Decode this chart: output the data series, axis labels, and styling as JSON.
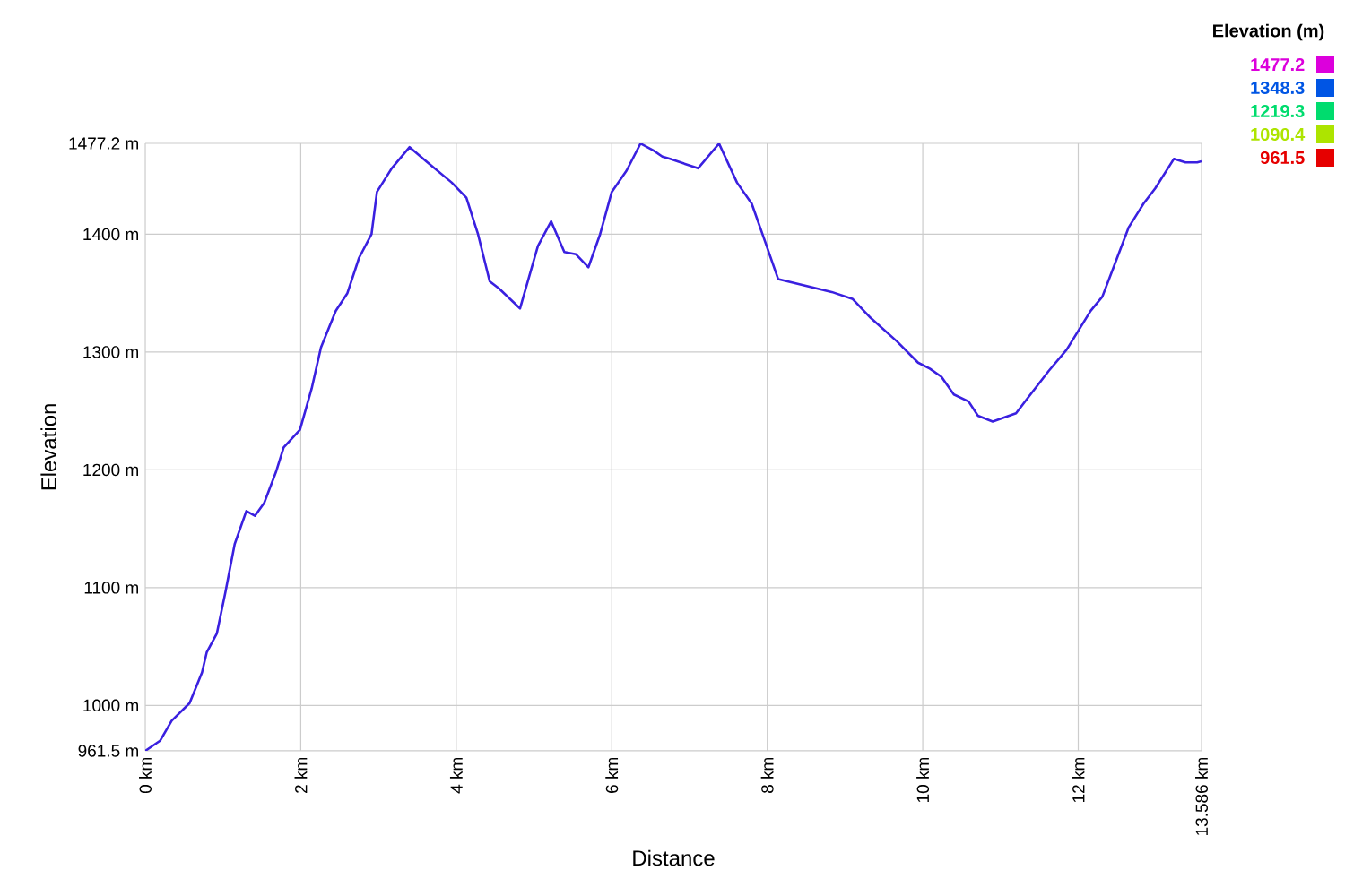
{
  "chart_data": {
    "type": "line",
    "xlabel": "Distance",
    "ylabel": "Elevation",
    "clabel": "Elevation (m)",
    "x": [
      0,
      0.19,
      0.34,
      0.57,
      0.73,
      0.79,
      0.92,
      1.03,
      1.15,
      1.3,
      1.41,
      1.53,
      1.68,
      1.78,
      1.99,
      2.14,
      2.26,
      2.45,
      2.6,
      2.75,
      2.91,
      2.98,
      3.17,
      3.4,
      3.63,
      3.94,
      4.13,
      4.28,
      4.43,
      4.55,
      4.82,
      5.05,
      5.22,
      5.39,
      5.54,
      5.7,
      5.85,
      6.0,
      6.19,
      6.37,
      6.54,
      6.65,
      6.75,
      7.11,
      7.38,
      7.61,
      7.8,
      7.95,
      8.14,
      8.45,
      8.83,
      9.1,
      9.33,
      9.67,
      9.94,
      10.09,
      10.24,
      10.4,
      10.59,
      10.71,
      10.9,
      11.2,
      11.35,
      11.62,
      11.85,
      12.16,
      12.31,
      12.46,
      12.65,
      12.84,
      12.99,
      13.23,
      13.38,
      13.53,
      13.586
    ],
    "values": [
      961.5,
      970,
      987,
      1002,
      1028,
      1045,
      1061,
      1096,
      1137,
      1165,
      1161,
      1172,
      1198,
      1219,
      1234,
      1269,
      1304,
      1335,
      1350,
      1380,
      1400,
      1436,
      1456,
      1474,
      1461,
      1444,
      1431,
      1400,
      1360,
      1354,
      1337,
      1390,
      1411,
      1385,
      1383,
      1372,
      1400,
      1436,
      1454,
      1477,
      1471,
      1466,
      1464,
      1456,
      1477,
      1444,
      1426,
      1398,
      1362,
      1357,
      1351,
      1345,
      1329,
      1309,
      1291,
      1286,
      1279,
      1264,
      1258,
      1246,
      1241,
      1248,
      1261,
      1284,
      1302,
      1335,
      1347,
      1373,
      1406,
      1426,
      1439,
      1464,
      1461,
      1461,
      1462
    ],
    "xlim": [
      0,
      13.586
    ],
    "xticks": [
      {
        "value": 0,
        "label": "0 km"
      },
      {
        "value": 2,
        "label": "2 km"
      },
      {
        "value": 4,
        "label": "4 km"
      },
      {
        "value": 6,
        "label": "6 km"
      },
      {
        "value": 8,
        "label": "8 km"
      },
      {
        "value": 10,
        "label": "10 km"
      },
      {
        "value": 12,
        "label": "12 km"
      },
      {
        "value": 13.586,
        "label": "13.586 km"
      }
    ],
    "ylim": [
      961.5,
      1477.2
    ],
    "yticks": [
      {
        "value": 961.5,
        "label": "961.5 m"
      },
      {
        "value": 1000,
        "label": "1000 m"
      },
      {
        "value": 1100,
        "label": "1100 m"
      },
      {
        "value": 1200,
        "label": "1200 m"
      },
      {
        "value": 1300,
        "label": "1300 m"
      },
      {
        "value": 1400,
        "label": "1400 m"
      },
      {
        "value": 1477.2,
        "label": "1477.2 m"
      }
    ],
    "clim": [
      961.5,
      1477.2
    ],
    "cticks": [
      1477.2,
      1348.3,
      1219.3,
      1090.4,
      961.5
    ],
    "grid": true,
    "color": "#3a20e0"
  }
}
